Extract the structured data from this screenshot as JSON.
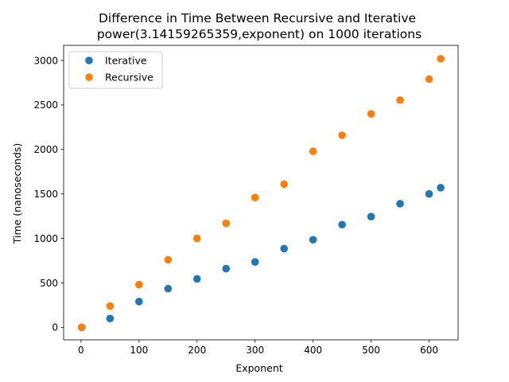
{
  "chart_data": {
    "type": "scatter",
    "title": "Difference in Time Between Recursive and Iterative\npower(3.14159265359,exponent) on 1000 iterations",
    "xlabel": "Exponent",
    "ylabel": "Time (nanoseconds)",
    "xlim": [
      -30,
      650
    ],
    "ylim": [
      -140,
      3170
    ],
    "xticks": [
      0,
      100,
      200,
      300,
      400,
      500,
      600
    ],
    "yticks": [
      0,
      500,
      1000,
      1500,
      2000,
      2500,
      3000
    ],
    "grid": false,
    "legend_position": "top-left",
    "x": [
      1,
      50,
      100,
      150,
      200,
      250,
      300,
      350,
      400,
      450,
      500,
      550,
      600,
      620
    ],
    "series": [
      {
        "name": "Iterative",
        "color": "#1f77b4",
        "values": [
          0,
          100,
          290,
          435,
          545,
          660,
          735,
          885,
          985,
          1155,
          1245,
          1390,
          1500,
          1570
        ]
      },
      {
        "name": "Recursive",
        "color": "#ff7f0e",
        "values": [
          0,
          240,
          480,
          760,
          1000,
          1170,
          1460,
          1610,
          1980,
          2160,
          2400,
          2555,
          2790,
          3020
        ]
      }
    ]
  }
}
